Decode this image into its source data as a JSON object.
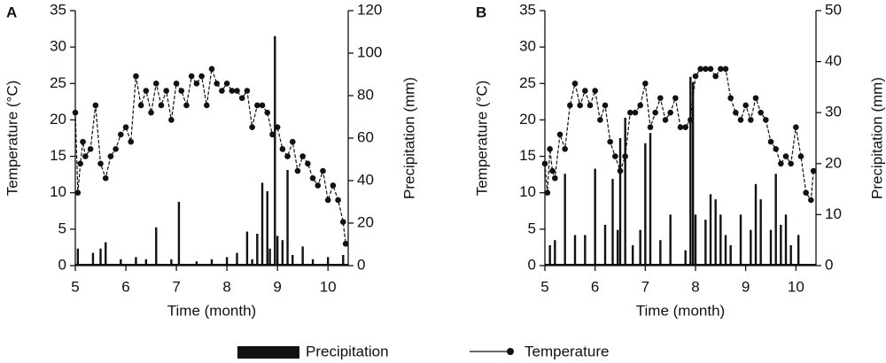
{
  "chart_data": [
    {
      "type": "line",
      "label": "A",
      "ylabel": "Temperature (°C)",
      "y2label": "Precipitation (mm)",
      "xlabel": "Time (month)",
      "xlim": [
        5,
        10.4
      ],
      "xticks": [
        5,
        6,
        7,
        8,
        9,
        10
      ],
      "ylim": [
        0,
        35
      ],
      "yticks": [
        0,
        5,
        10,
        15,
        20,
        25,
        30,
        35
      ],
      "y2lim": [
        0,
        120
      ],
      "y2ticks": [
        0,
        20,
        40,
        60,
        80,
        100,
        120
      ],
      "series": [
        {
          "name": "Precipitation",
          "type": "bar",
          "axis": "y2",
          "color": "#111",
          "x": [
            5.05,
            5.35,
            5.5,
            5.6,
            5.9,
            6.2,
            6.4,
            6.6,
            6.9,
            7.05,
            7.4,
            7.7,
            8.0,
            8.2,
            8.4,
            8.5,
            8.6,
            8.7,
            8.8,
            8.85,
            8.95,
            9.0,
            9.1,
            9.2,
            9.3,
            9.5,
            9.7,
            10.0,
            10.3
          ],
          "values": [
            8,
            6,
            8,
            11,
            3,
            4,
            3,
            18,
            3,
            30,
            2,
            3,
            4,
            6,
            16,
            3,
            15,
            39,
            35,
            8,
            108,
            14,
            12,
            45,
            5,
            9,
            3,
            4,
            5
          ]
        },
        {
          "name": "Temperature",
          "type": "line",
          "color": "#111",
          "x": [
            5.0,
            5.05,
            5.1,
            5.15,
            5.2,
            5.3,
            5.4,
            5.5,
            5.6,
            5.7,
            5.8,
            5.9,
            6.0,
            6.1,
            6.2,
            6.3,
            6.4,
            6.5,
            6.6,
            6.7,
            6.8,
            6.9,
            7.0,
            7.1,
            7.2,
            7.3,
            7.4,
            7.5,
            7.6,
            7.7,
            7.8,
            7.9,
            8.0,
            8.1,
            8.2,
            8.3,
            8.4,
            8.5,
            8.6,
            8.7,
            8.8,
            8.9,
            9.0,
            9.1,
            9.2,
            9.3,
            9.4,
            9.5,
            9.6,
            9.7,
            9.8,
            9.9,
            10.0,
            10.1,
            10.2,
            10.3,
            10.35
          ],
          "values": [
            21,
            10,
            14,
            17,
            15,
            16,
            22,
            14,
            12,
            15,
            16,
            18,
            19,
            17,
            26,
            22,
            24,
            21,
            25,
            22,
            24,
            20,
            25,
            24,
            22,
            26,
            25,
            26,
            22,
            27,
            25,
            24,
            25,
            24,
            24,
            23,
            24,
            19,
            22,
            22,
            21,
            18,
            19,
            16,
            15,
            17,
            13,
            15,
            14,
            12,
            11,
            13,
            9,
            11,
            9,
            6,
            3
          ]
        }
      ]
    },
    {
      "type": "line",
      "label": "B",
      "ylabel": "Temperature (°C)",
      "y2label": "Precipitation (mm)",
      "xlabel": "Time (month)",
      "xlim": [
        5,
        10.4
      ],
      "xticks": [
        5,
        6,
        7,
        8,
        9,
        10
      ],
      "ylim": [
        0,
        35
      ],
      "yticks": [
        0,
        5,
        10,
        15,
        20,
        25,
        30,
        35
      ],
      "y2lim": [
        0,
        50
      ],
      "y2ticks": [
        0,
        10,
        20,
        30,
        40,
        50
      ],
      "series": [
        {
          "name": "Precipitation",
          "type": "bar",
          "axis": "y2",
          "color": "#111",
          "x": [
            5.1,
            5.2,
            5.4,
            5.6,
            5.8,
            6.0,
            6.2,
            6.35,
            6.45,
            6.5,
            6.6,
            6.75,
            6.9,
            7.0,
            7.1,
            7.3,
            7.5,
            7.8,
            7.9,
            7.95,
            8.0,
            8.2,
            8.3,
            8.4,
            8.5,
            8.6,
            8.7,
            8.9,
            9.1,
            9.2,
            9.3,
            9.5,
            9.6,
            9.7,
            9.8,
            9.9,
            10.05
          ],
          "values": [
            4,
            5,
            18,
            6,
            6,
            19,
            8,
            17,
            7,
            25,
            29,
            4,
            7,
            24,
            26,
            5,
            10,
            3,
            37,
            36,
            10,
            9,
            14,
            13,
            10,
            6,
            4,
            10,
            7,
            16,
            13,
            7,
            18,
            8,
            10,
            4,
            6
          ]
        },
        {
          "name": "Temperature",
          "type": "line",
          "color": "#111",
          "x": [
            5.0,
            5.05,
            5.1,
            5.15,
            5.2,
            5.3,
            5.4,
            5.5,
            5.6,
            5.7,
            5.8,
            5.9,
            6.0,
            6.1,
            6.2,
            6.3,
            6.4,
            6.5,
            6.6,
            6.7,
            6.8,
            6.9,
            7.0,
            7.1,
            7.2,
            7.3,
            7.4,
            7.5,
            7.6,
            7.7,
            7.8,
            7.9,
            8.0,
            8.1,
            8.2,
            8.3,
            8.4,
            8.5,
            8.6,
            8.7,
            8.8,
            8.9,
            9.0,
            9.1,
            9.2,
            9.3,
            9.4,
            9.5,
            9.6,
            9.7,
            9.8,
            9.9,
            10.0,
            10.1,
            10.2,
            10.3,
            10.35
          ],
          "values": [
            14,
            10,
            16,
            13,
            12,
            18,
            16,
            22,
            25,
            22,
            24,
            22,
            24,
            20,
            22,
            17,
            15,
            13,
            15,
            21,
            21,
            22,
            25,
            19,
            21,
            23,
            20,
            21,
            23,
            19,
            19,
            20,
            26,
            27,
            27,
            27,
            26,
            27,
            27,
            23,
            21,
            20,
            22,
            20,
            23,
            21,
            20,
            17,
            16,
            14,
            15,
            14,
            19,
            15,
            10,
            9,
            13
          ]
        }
      ]
    }
  ]
}
